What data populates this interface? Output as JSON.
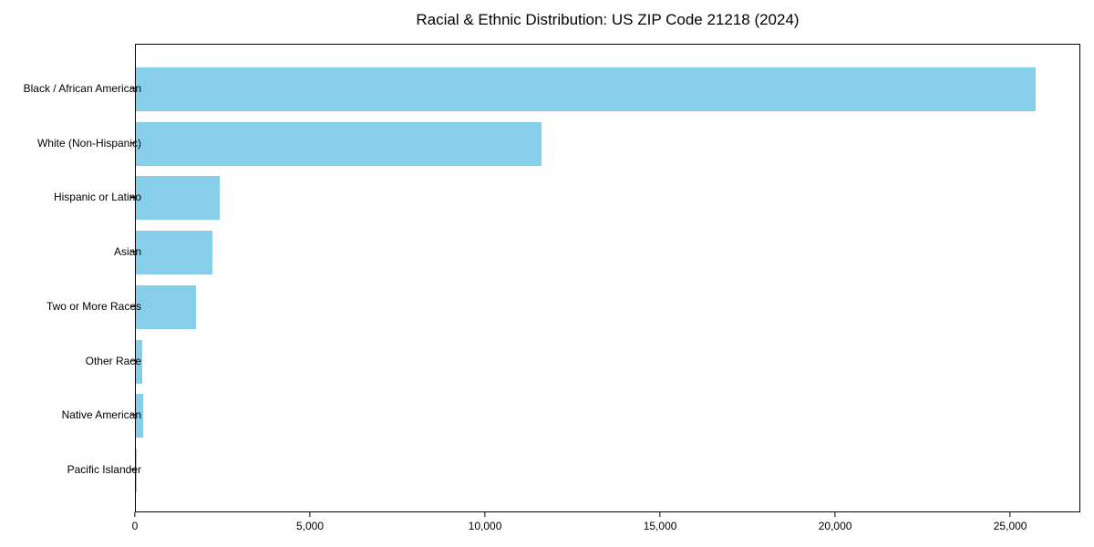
{
  "chart_data": {
    "type": "bar",
    "orientation": "horizontal",
    "title": "Racial & Ethnic Distribution: US ZIP Code 21218 (2024)",
    "categories": [
      "Black / African American",
      "White (Non-Hispanic)",
      "Hispanic or Latino",
      "Asian",
      "Two or More Races",
      "Other Race",
      "Native American",
      "Pacific Islander"
    ],
    "values": [
      25700,
      11600,
      2400,
      2180,
      1730,
      190,
      200,
      30
    ],
    "xlabel": "",
    "ylabel": "",
    "xlim": [
      0,
      26950
    ],
    "x_ticks": [
      0,
      5000,
      10000,
      15000,
      20000,
      25000
    ],
    "x_tick_labels": [
      "0",
      "5,000",
      "10,000",
      "15,000",
      "20,000",
      "25,000"
    ],
    "bar_color": "#87CEEB",
    "grid": false,
    "legend": null
  }
}
